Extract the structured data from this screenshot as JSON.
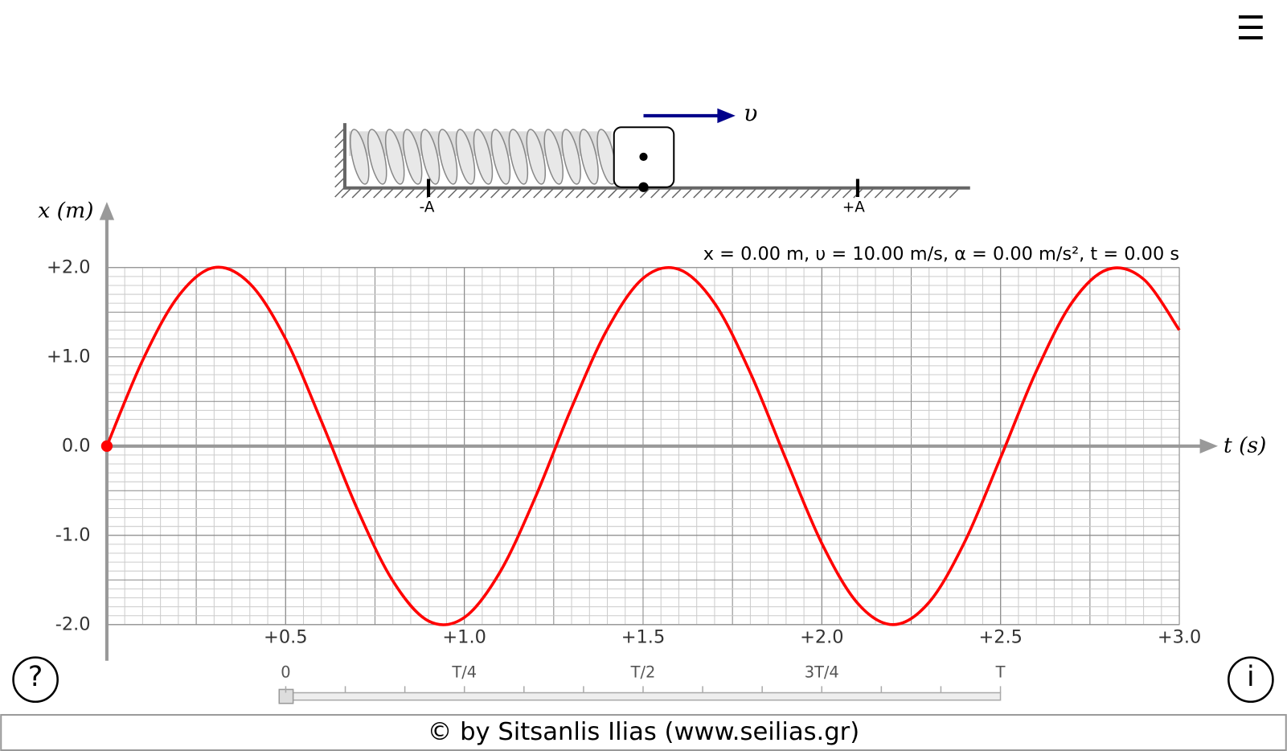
{
  "menu_icon": "☰",
  "spring": {
    "velocity_label": "υ",
    "minus_label": "-A",
    "plus_label": "+A"
  },
  "readout": "x = 0.00 m, υ = 10.00 m/s, α = 0.00 m/s², t = 0.00 s",
  "chart_data": {
    "type": "line",
    "y_label": "x (m)",
    "x_label": "t (s)",
    "xlim": [
      0,
      3
    ],
    "ylim": [
      -2,
      2
    ],
    "xticks": [
      {
        "value": 0.5,
        "label": "+0.5"
      },
      {
        "value": 1,
        "label": "+1.0"
      },
      {
        "value": 1.5,
        "label": "+1.5"
      },
      {
        "value": 2,
        "label": "+2.0"
      },
      {
        "value": 2.5,
        "label": "+2.5"
      },
      {
        "value": 3,
        "label": "+3.0"
      }
    ],
    "yticks": [
      {
        "value": 2,
        "label": "+2.0"
      },
      {
        "value": 1,
        "label": "+1.0"
      },
      {
        "value": 0,
        "label": "0.0"
      },
      {
        "value": -1,
        "label": "-1.0"
      },
      {
        "value": -2,
        "label": "-2.0"
      }
    ],
    "grid": true,
    "x": [
      0,
      0.1,
      0.2,
      0.3,
      0.4,
      0.5,
      0.6,
      0.7,
      0.8,
      0.9,
      1.0,
      1.1,
      1.2,
      1.3,
      1.4,
      1.5,
      1.6,
      1.7,
      1.8,
      1.9,
      2.0,
      2.1,
      2.2,
      2.3,
      2.4,
      2.5,
      2.6,
      2.7,
      2.8,
      2.9,
      3.0
    ],
    "series": [
      {
        "color": "#ff0000",
        "values": [
          0,
          0.96,
          1.68,
          2.0,
          1.82,
          1.2,
          0.28,
          -0.7,
          -1.51,
          -1.96,
          -1.92,
          -1.41,
          -0.56,
          0.43,
          1.31,
          1.88,
          1.98,
          1.6,
          0.82,
          -0.15,
          -1.09,
          -1.76,
          -2.0,
          -1.75,
          -1.07,
          -0.13,
          0.84,
          1.61,
          1.98,
          1.87,
          1.3
        ]
      }
    ]
  },
  "slider": {
    "labels": [
      "0",
      "T/4",
      "T/2",
      "3T/4",
      "T"
    ]
  },
  "help_button": "?",
  "info_button": "i",
  "footer": "© by Sitsanlis Ilias (www.seilias.gr)"
}
